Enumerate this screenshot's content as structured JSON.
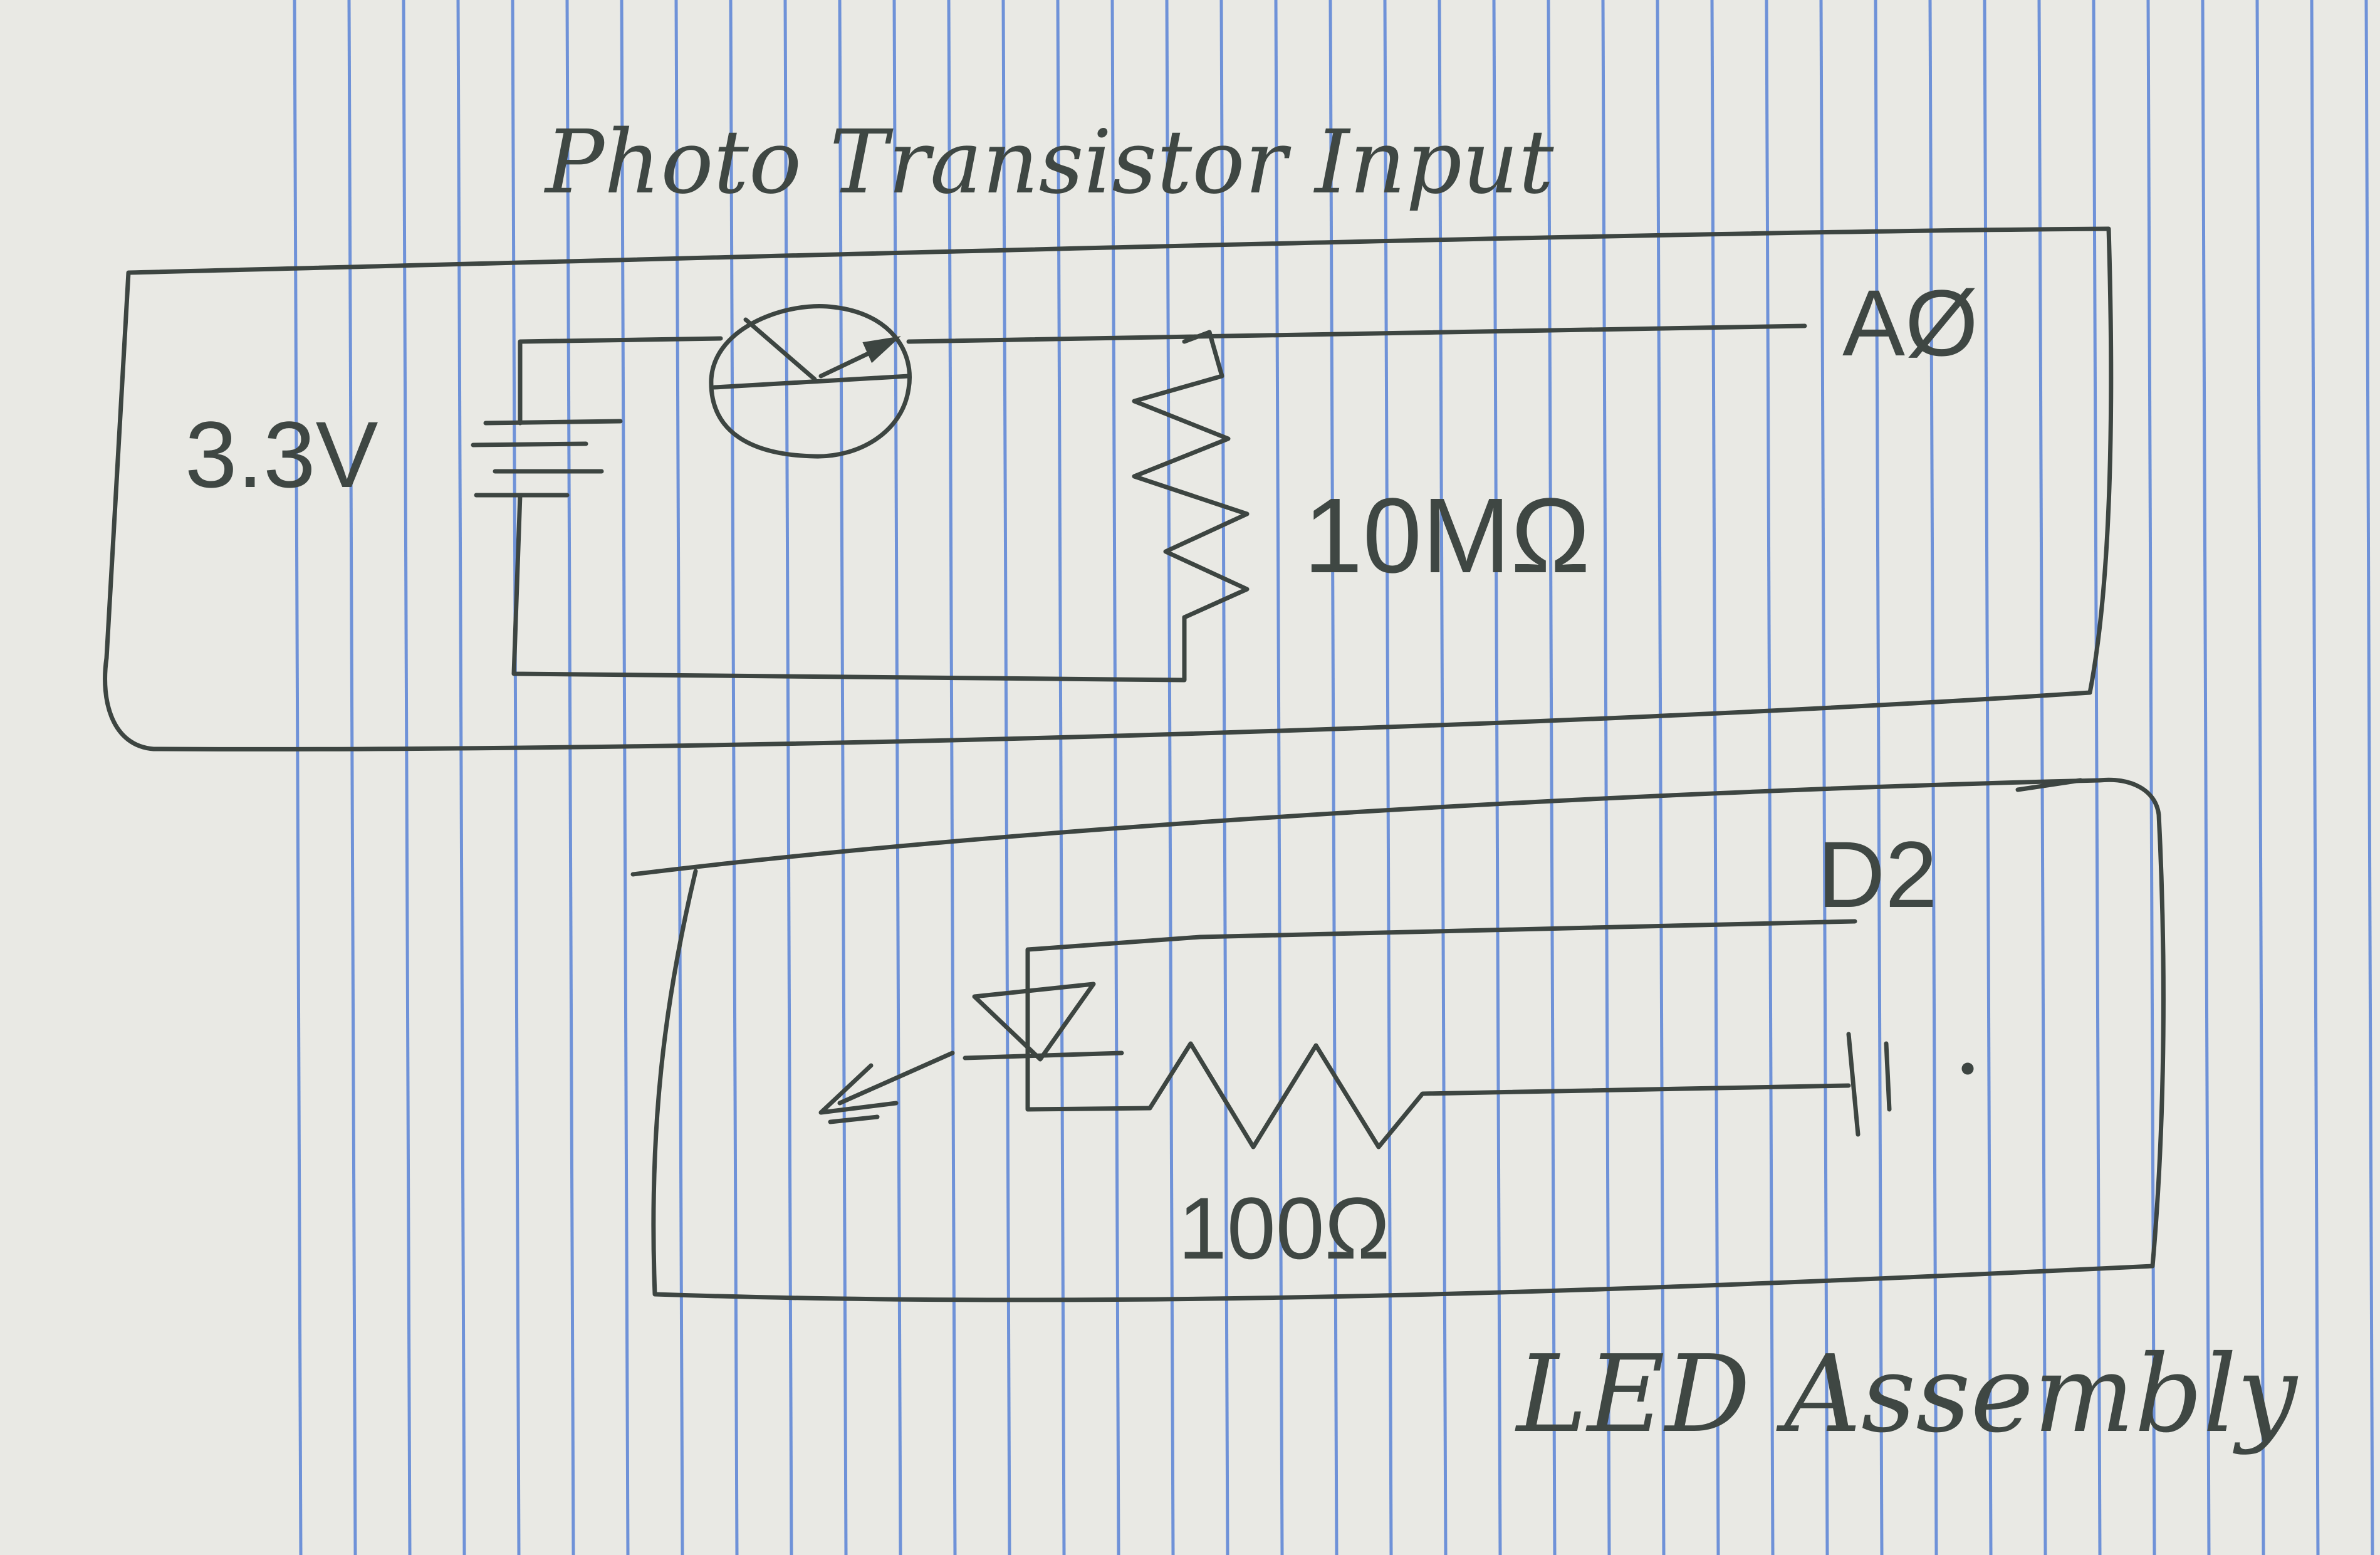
{
  "photo_section": {
    "title": "Photo Transistor Input",
    "supply_label": "3.3V",
    "resistor_label": "10MΩ",
    "output_pin": "AØ"
  },
  "led_section": {
    "title": "LED Assembly",
    "input_pin": "D2",
    "resistor_label": "100Ω"
  }
}
